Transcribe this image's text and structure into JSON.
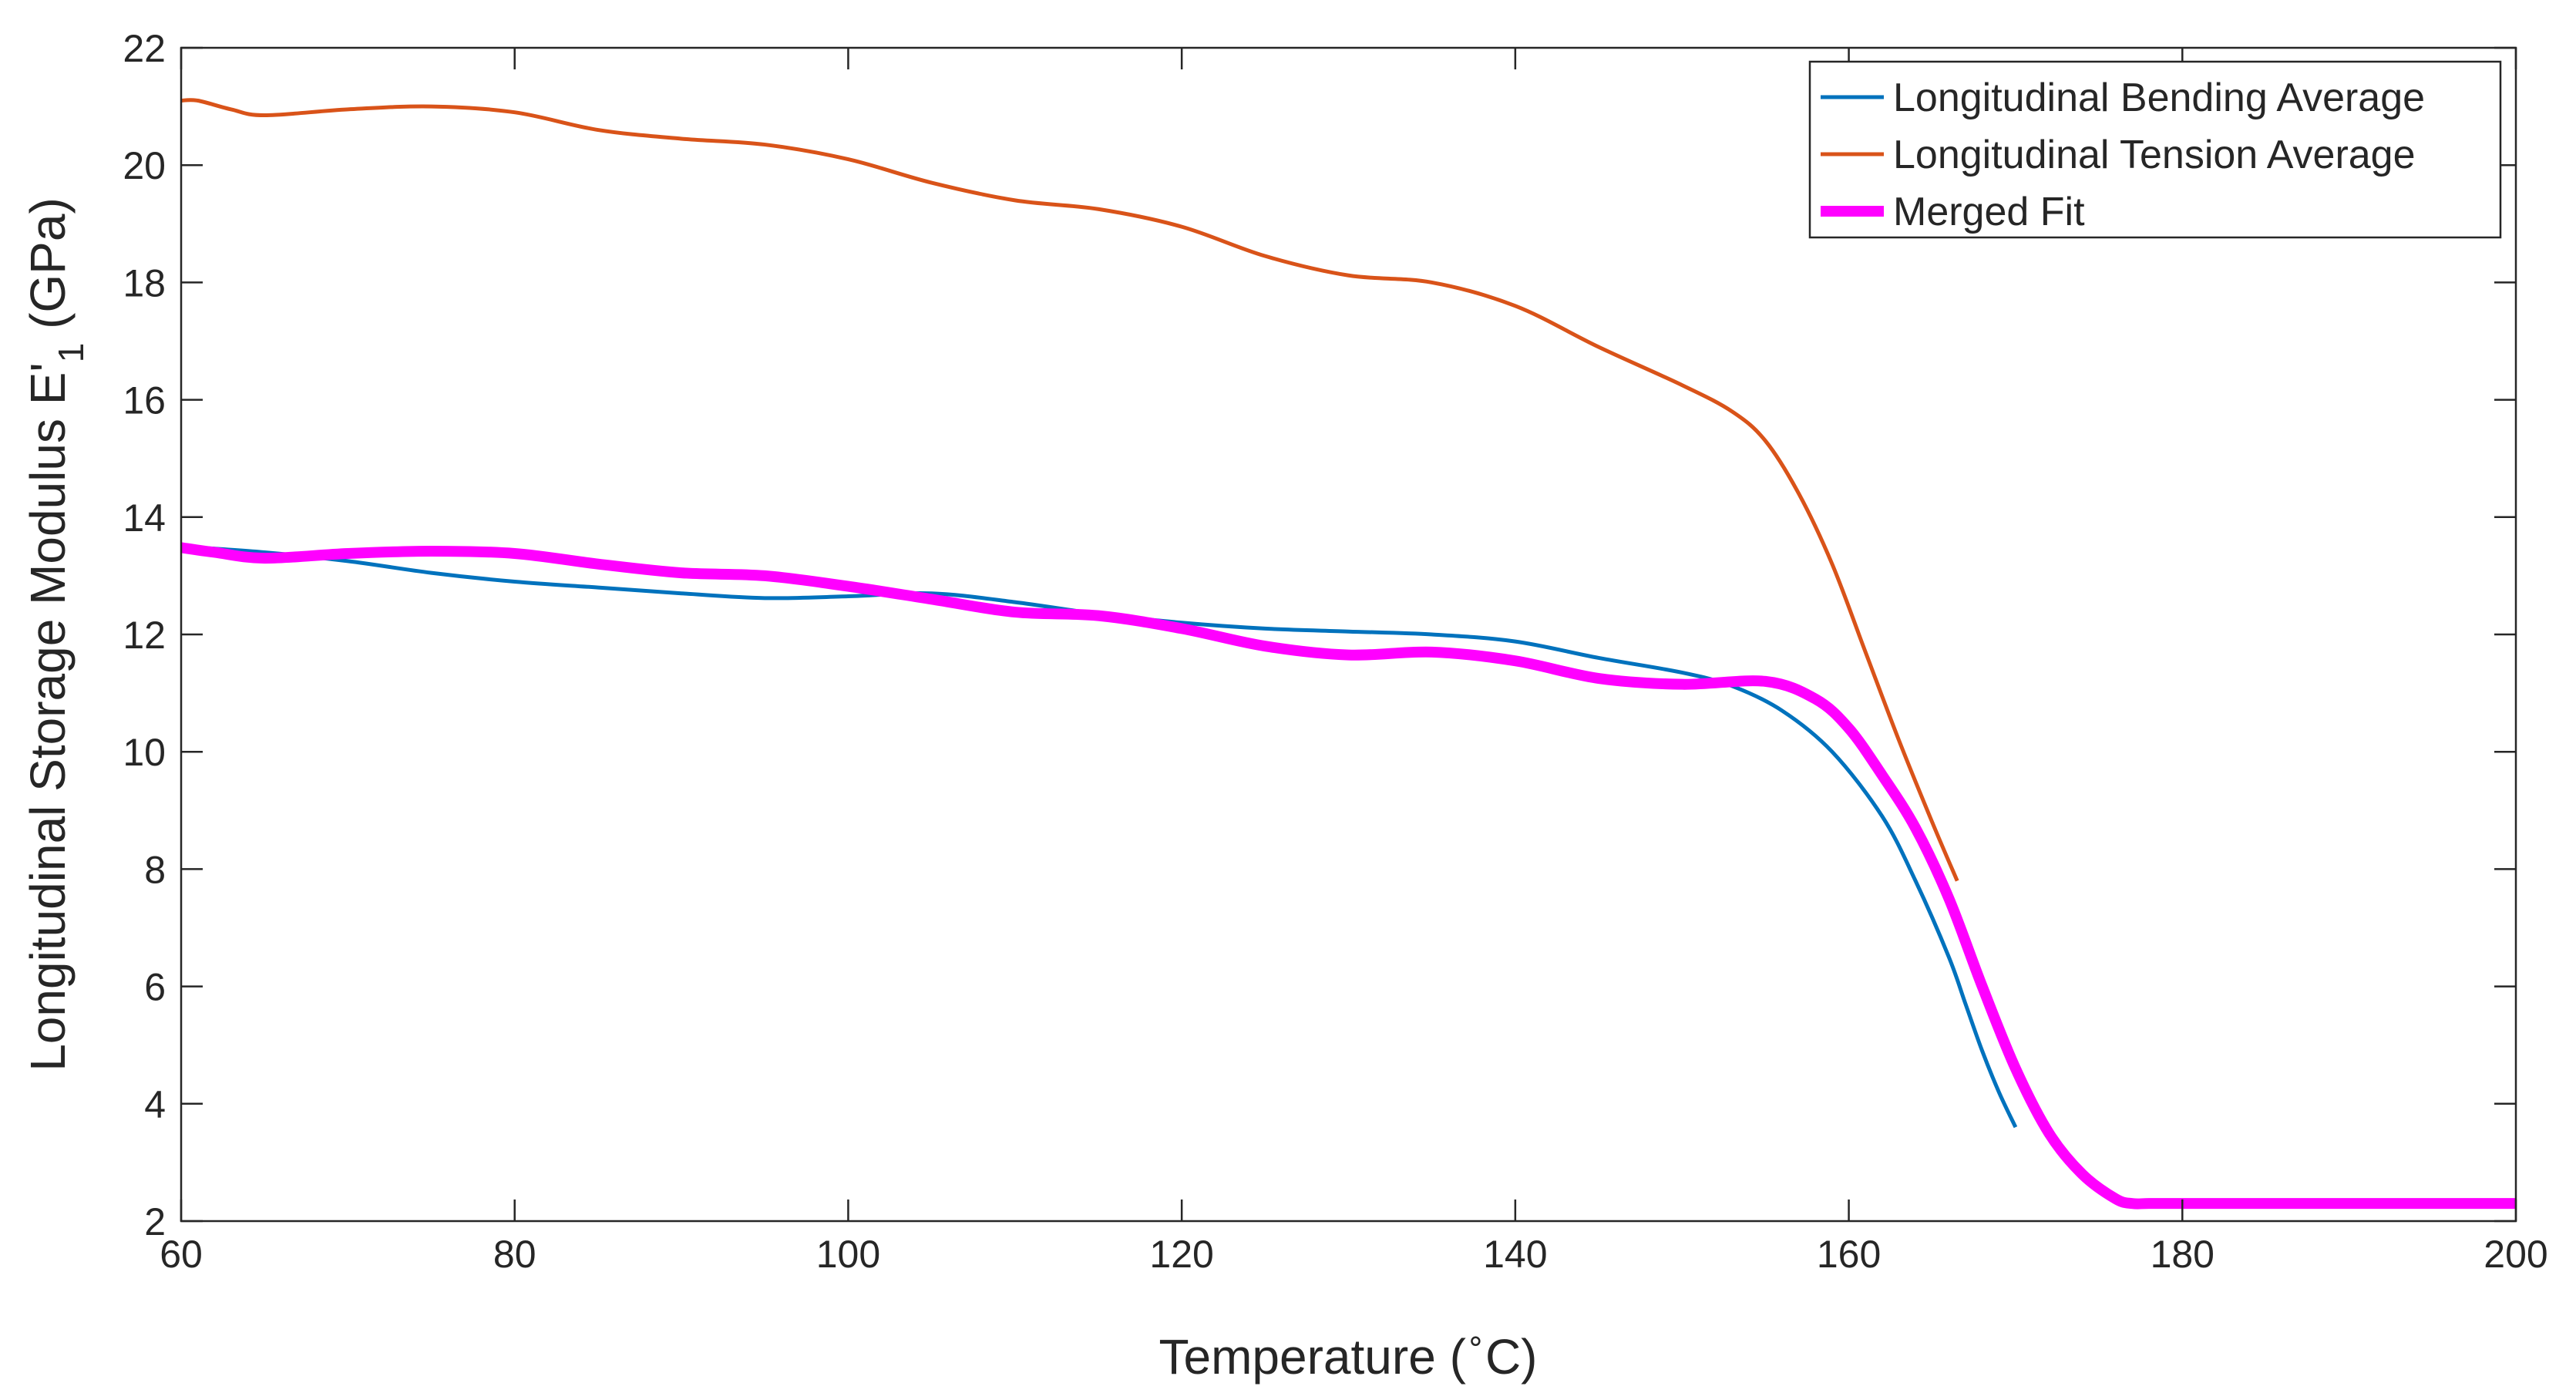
{
  "chart_data": {
    "type": "line",
    "title": "",
    "xlabel": "Temperature (",
    "xlabel_unit_superscript": "∘",
    "xlabel_unit_suffix": "C)",
    "ylabel": "Longitudinal Storage Modulus E'",
    "ylabel_subscript": "1",
    "ylabel_suffix": " (GPa)",
    "xlim": [
      60,
      200
    ],
    "ylim": [
      2,
      22
    ],
    "xticks": [
      60,
      80,
      100,
      120,
      140,
      160,
      180,
      200
    ],
    "yticks": [
      2,
      4,
      6,
      8,
      10,
      12,
      14,
      16,
      18,
      20,
      22
    ],
    "grid": false,
    "legend_position": "top-right",
    "series": [
      {
        "name": "Longitudinal Bending Average",
        "color": "#0072BD",
        "x": [
          60,
          65,
          70,
          75,
          80,
          85,
          90,
          95,
          100,
          105,
          110,
          115,
          120,
          125,
          130,
          135,
          140,
          145,
          150,
          153,
          156,
          159,
          162,
          164,
          166,
          167,
          168,
          169,
          170
        ],
        "y": [
          13.5,
          13.4,
          13.25,
          13.05,
          12.9,
          12.8,
          12.7,
          12.62,
          12.65,
          12.7,
          12.55,
          12.35,
          12.2,
          12.1,
          12.05,
          12.0,
          11.88,
          11.6,
          11.35,
          11.12,
          10.7,
          10.0,
          8.9,
          7.8,
          6.5,
          5.7,
          4.9,
          4.2,
          3.6
        ]
      },
      {
        "name": "Longitudinal Tension Average",
        "color": "#D95319",
        "x": [
          60,
          61,
          63,
          65,
          70,
          75,
          80,
          85,
          90,
          95,
          100,
          105,
          110,
          115,
          120,
          125,
          130,
          135,
          140,
          145,
          150,
          153,
          155,
          157,
          159,
          161,
          163,
          165,
          166.5
        ],
        "y": [
          21.1,
          21.1,
          20.95,
          20.85,
          20.95,
          21.0,
          20.9,
          20.6,
          20.45,
          20.35,
          20.1,
          19.7,
          19.4,
          19.25,
          18.95,
          18.45,
          18.12,
          18.0,
          17.6,
          16.9,
          16.25,
          15.8,
          15.3,
          14.4,
          13.2,
          11.7,
          10.2,
          8.8,
          7.8
        ]
      },
      {
        "name": "Merged Fit",
        "color": "#FF00FF",
        "x": [
          60,
          62,
          65,
          70,
          75,
          80,
          85,
          90,
          95,
          100,
          105,
          110,
          115,
          120,
          125,
          130,
          135,
          140,
          145,
          150,
          155,
          158,
          160,
          162,
          164,
          166,
          168,
          170,
          172,
          174,
          176,
          177,
          178,
          180,
          185,
          190,
          195,
          200
        ],
        "y": [
          13.48,
          13.4,
          13.3,
          13.38,
          13.42,
          13.38,
          13.2,
          13.05,
          13.0,
          12.82,
          12.6,
          12.38,
          12.32,
          12.1,
          11.8,
          11.65,
          11.7,
          11.55,
          11.25,
          11.15,
          11.2,
          10.9,
          10.4,
          9.6,
          8.7,
          7.5,
          6.0,
          4.6,
          3.5,
          2.8,
          2.38,
          2.3,
          2.3,
          2.3,
          2.3,
          2.3,
          2.3,
          2.3
        ]
      }
    ]
  }
}
